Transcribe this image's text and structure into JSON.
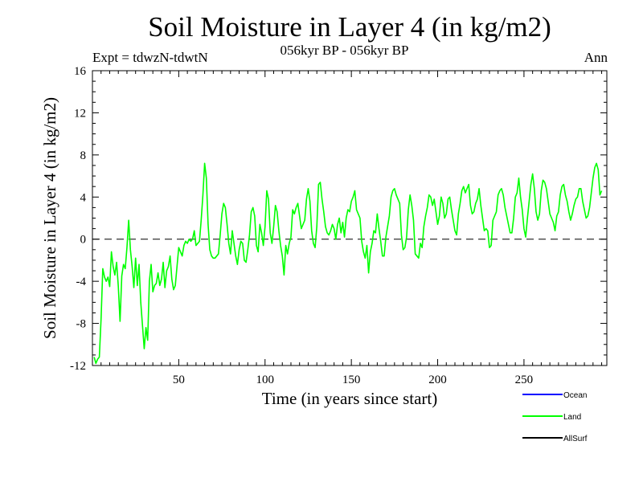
{
  "chart_data": {
    "type": "line",
    "title": "Soil Moisture in Layer 4 (in kg/m2)",
    "subtitle": "056kyr BP - 056kyr BP",
    "expt_label": "Expt = tdwzN-tdwtN",
    "period_label": "Ann",
    "xlabel": "Time (in years since start)",
    "ylabel": "Soil Moisture in Layer 4 (in kg/m2)",
    "xlim": [
      0,
      298
    ],
    "ylim": [
      -12,
      16
    ],
    "x_ticks": [
      50,
      100,
      150,
      200,
      250
    ],
    "y_ticks": [
      -12,
      -8,
      -4,
      0,
      4,
      8,
      12,
      16
    ],
    "zero_line": "dashed",
    "legend": [
      {
        "name": "Ocean",
        "color": "#0000ff"
      },
      {
        "name": "Land",
        "color": "#00ff00"
      },
      {
        "name": "AllSurf",
        "color": "#000000"
      }
    ],
    "series": [
      {
        "name": "Land",
        "color": "#00ff00",
        "x_start": 1,
        "x_step": 1,
        "values": [
          -11.2,
          -11.8,
          -11.4,
          -11.2,
          -7.6,
          -2.8,
          -3.6,
          -4.0,
          -3.6,
          -4.5,
          -1.2,
          -2.6,
          -3.4,
          -2.2,
          -4.5,
          -7.8,
          -3.5,
          -2.4,
          -2.8,
          -0.8,
          1.8,
          -1.0,
          -2.6,
          -4.6,
          -1.8,
          -4.4,
          -2.4,
          -6.0,
          -8.2,
          -10.4,
          -8.4,
          -9.6,
          -4.0,
          -2.4,
          -5.0,
          -4.4,
          -4.2,
          -3.2,
          -4.4,
          -3.8,
          -2.2,
          -4.6,
          -3.0,
          -2.6,
          -1.6,
          -3.8,
          -4.8,
          -4.4,
          -2.6,
          -0.8,
          -1.2,
          -1.6,
          -0.6,
          -0.2,
          -0.4,
          0.0,
          -0.2,
          0.0,
          0.8,
          -0.6,
          -0.4,
          -0.2,
          1.8,
          4.2,
          7.2,
          5.8,
          1.4,
          -1.0,
          -1.6,
          -1.8,
          -1.8,
          -1.6,
          -1.4,
          0.4,
          2.4,
          3.4,
          3.0,
          1.4,
          -0.4,
          -1.4,
          0.8,
          -0.4,
          -1.6,
          -2.4,
          -1.0,
          -0.2,
          -0.4,
          -2.0,
          -2.2,
          -1.0,
          0.4,
          2.6,
          3.0,
          2.2,
          -0.6,
          -1.2,
          1.4,
          0.6,
          -0.6,
          1.2,
          4.6,
          3.8,
          0.6,
          -0.4,
          1.2,
          3.2,
          2.6,
          0.8,
          -0.6,
          -1.6,
          -3.4,
          -0.6,
          -1.4,
          -0.4,
          0.2,
          2.8,
          2.4,
          3.0,
          3.4,
          2.2,
          1.0,
          1.4,
          1.8,
          3.8,
          4.8,
          3.6,
          0.8,
          -0.4,
          -0.8,
          1.2,
          5.2,
          5.4,
          3.8,
          2.6,
          1.2,
          0.6,
          0.4,
          0.8,
          1.4,
          1.0,
          0.0,
          1.4,
          2.0,
          0.6,
          1.6,
          0.2,
          2.0,
          2.8,
          2.6,
          3.6,
          4.0,
          4.6,
          2.8,
          2.4,
          2.0,
          -0.2,
          -1.2,
          -1.8,
          -0.6,
          -3.2,
          -1.2,
          -0.4,
          0.8,
          0.6,
          2.4,
          1.0,
          -0.2,
          -1.6,
          -1.6,
          0.2,
          1.2,
          2.2,
          4.0,
          4.6,
          4.8,
          4.2,
          3.8,
          3.4,
          0.4,
          -1.0,
          -0.8,
          0.2,
          2.8,
          4.2,
          3.2,
          1.8,
          -1.4,
          -1.6,
          -1.8,
          -0.4,
          -0.8,
          1.2,
          2.2,
          3.0,
          4.2,
          4.0,
          3.2,
          3.8,
          2.6,
          1.4,
          2.2,
          4.0,
          3.4,
          2.0,
          2.4,
          3.8,
          4.0,
          2.8,
          1.8,
          0.8,
          0.4,
          2.4,
          3.4,
          4.6,
          5.0,
          4.4,
          4.8,
          5.2,
          3.2,
          2.4,
          2.6,
          3.4,
          3.8,
          4.8,
          3.2,
          2.0,
          0.8,
          1.0,
          0.8,
          -0.8,
          -0.6,
          1.8,
          2.2,
          2.6,
          4.2,
          4.6,
          4.8,
          4.2,
          3.0,
          2.2,
          1.4,
          0.6,
          0.6,
          2.0,
          4.0,
          4.4,
          5.8,
          4.0,
          2.8,
          1.0,
          0.2,
          2.0,
          3.6,
          5.2,
          6.2,
          4.8,
          2.6,
          1.8,
          2.4,
          4.6,
          5.6,
          5.4,
          4.8,
          3.6,
          2.4,
          2.0,
          1.6,
          0.8,
          2.2,
          2.6,
          4.2,
          5.0,
          5.2,
          4.2,
          3.6,
          2.6,
          1.8,
          2.4,
          3.2,
          3.8,
          4.0,
          4.8,
          4.8,
          3.6,
          2.8,
          2.0,
          2.2,
          3.0,
          4.4,
          5.8,
          6.8,
          7.2,
          6.6,
          4.2,
          4.6
        ]
      }
    ]
  }
}
